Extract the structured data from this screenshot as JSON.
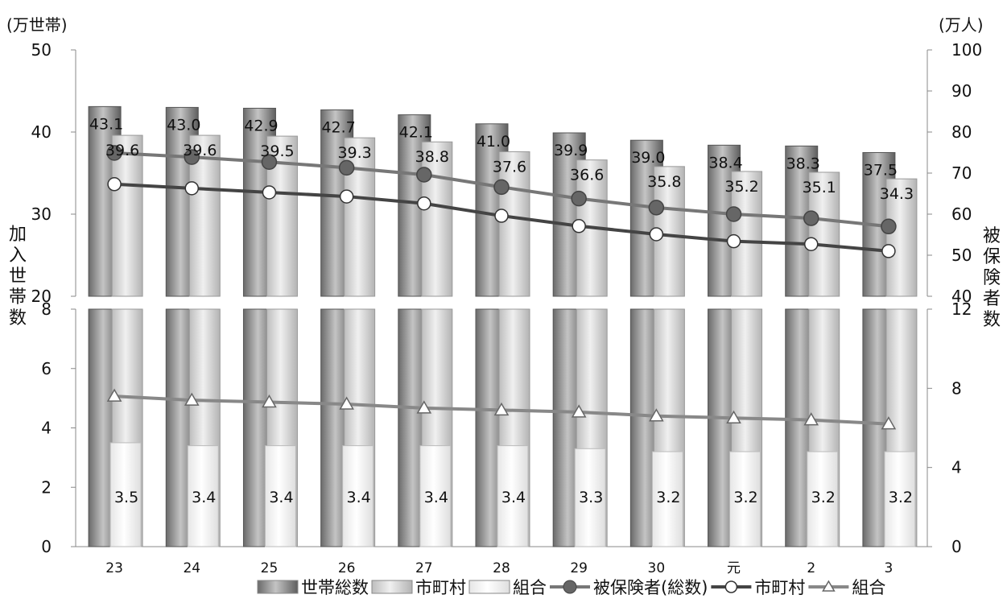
{
  "chart_data": {
    "type": "bar",
    "categories": [
      "23",
      "24",
      "25",
      "26",
      "27",
      "28",
      "29",
      "30",
      "元",
      "2",
      "3"
    ],
    "axis_labels": {
      "left_unit": "(万世帯)",
      "right_unit": "(万人)",
      "left_title": "加入世帯数",
      "right_title": "被保険者数"
    },
    "upper_panel": {
      "left_ylim": [
        20,
        50
      ],
      "left_ticks": [
        20,
        30,
        40,
        50
      ],
      "right_ylim": [
        40,
        100
      ],
      "right_ticks": [
        40,
        50,
        60,
        70,
        80,
        90,
        100
      ]
    },
    "lower_panel": {
      "left_ylim": [
        0,
        8
      ],
      "left_ticks": [
        0,
        2,
        4,
        6,
        8
      ],
      "right_ylim": [
        0,
        12
      ],
      "right_ticks": [
        0,
        4,
        8,
        12
      ]
    },
    "bar_series": [
      {
        "name": "世帯総数",
        "values": [
          43.1,
          43.0,
          42.9,
          42.7,
          42.1,
          41.0,
          39.9,
          39.0,
          38.4,
          38.3,
          37.5
        ]
      },
      {
        "name": "市町村",
        "values": [
          39.6,
          39.6,
          39.5,
          39.3,
          38.8,
          37.6,
          36.6,
          35.8,
          35.2,
          35.1,
          34.3
        ]
      },
      {
        "name": "組合",
        "values": [
          3.5,
          3.4,
          3.4,
          3.4,
          3.4,
          3.4,
          3.3,
          3.2,
          3.2,
          3.2,
          3.2
        ]
      }
    ],
    "line_series": [
      {
        "name": "被保険者(総数)",
        "axis": "right",
        "panel": "upper",
        "marker": "filled-circle",
        "color": "#777777",
        "values": [
          74.9,
          73.9,
          72.7,
          71.3,
          69.6,
          66.6,
          63.8,
          61.6,
          60.0,
          59.0,
          57.0
        ]
      },
      {
        "name": "市町村",
        "axis": "right",
        "panel": "upper",
        "marker": "open-circle",
        "color": "#444444",
        "values": [
          67.3,
          66.3,
          65.3,
          64.3,
          62.6,
          59.6,
          57.1,
          55.1,
          53.4,
          52.7,
          51.0
        ]
      },
      {
        "name": "組合",
        "axis": "right",
        "panel": "lower",
        "marker": "open-triangle",
        "color": "#888888",
        "values": [
          7.6,
          7.4,
          7.3,
          7.2,
          7.0,
          6.9,
          6.8,
          6.6,
          6.5,
          6.4,
          6.2
        ]
      }
    ],
    "legend": {
      "placement": "bottom-right",
      "items": [
        "世帯総数",
        "市町村",
        "組合",
        "被保険者(総数)",
        "市町村",
        "組合"
      ]
    }
  }
}
